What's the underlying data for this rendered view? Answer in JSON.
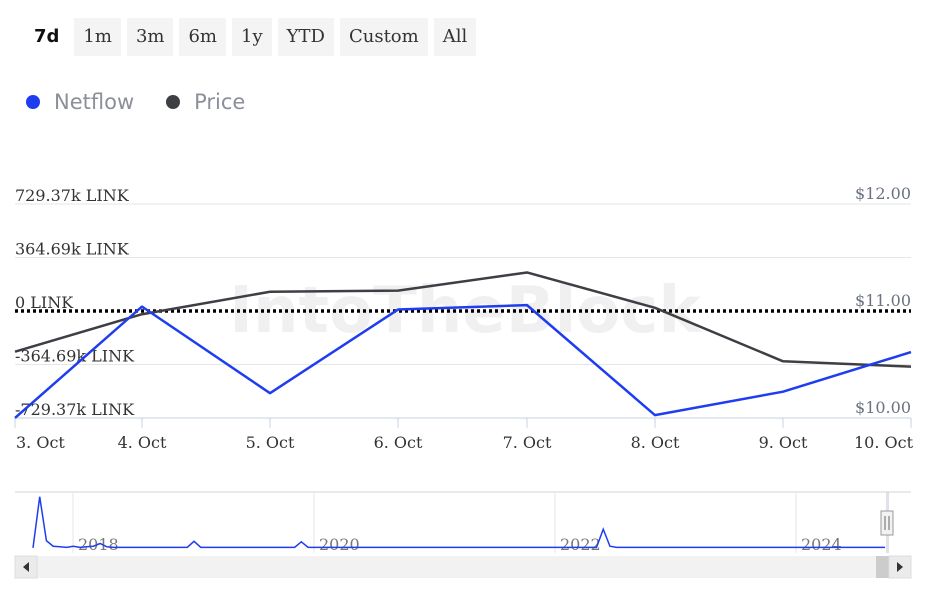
{
  "range_selector": {
    "buttons": [
      {
        "label": "7d",
        "active": true
      },
      {
        "label": "1m",
        "active": false
      },
      {
        "label": "3m",
        "active": false
      },
      {
        "label": "6m",
        "active": false
      },
      {
        "label": "1y",
        "active": false
      },
      {
        "label": "YTD",
        "active": false
      },
      {
        "label": "Custom",
        "active": false
      },
      {
        "label": "All",
        "active": false
      }
    ]
  },
  "watermark": "IntoTheBlock",
  "colors": {
    "netflow": "#1f3df0",
    "price": "#3d3f44",
    "zero_line": "#000000",
    "grid": "#e6e6e6"
  },
  "chart_data": {
    "type": "line",
    "x": [
      "3. Oct",
      "4. Oct",
      "5. Oct",
      "6. Oct",
      "7. Oct",
      "8. Oct",
      "9. Oct",
      "10. Oct"
    ],
    "left_axis": {
      "ticks": [
        -729.37,
        -364.69,
        0,
        364.69,
        729.37
      ],
      "tick_labels": [
        "-729.37k LINK",
        "-364.69k LINK",
        "0 LINK",
        "364.69k LINK",
        "729.37k LINK"
      ],
      "range": [
        -729.37,
        729.37
      ]
    },
    "right_axis": {
      "ticks": [
        10.0,
        11.0,
        12.0
      ],
      "tick_labels": [
        "$10.00",
        "$11.00",
        "$12.00"
      ],
      "range": [
        10.0,
        12.0
      ]
    },
    "series": [
      {
        "name": "Netflow",
        "axis": "left",
        "values": [
          -729,
          30,
          -560,
          10,
          40,
          -710,
          -550,
          -280
        ]
      },
      {
        "name": "Price",
        "axis": "right",
        "values": [
          10.62,
          10.97,
          11.18,
          11.19,
          11.36,
          11.03,
          10.53,
          10.48
        ]
      }
    ],
    "grid": true,
    "legend": "top-left",
    "navigator": {
      "year_labels": [
        "2018",
        "2020",
        "2022",
        "2024"
      ],
      "values": [
        0.02,
        0.95,
        0.15,
        0.05,
        0.04,
        0.03,
        0.05,
        0.03,
        0.04,
        0.05,
        0.1,
        0.04,
        0.03,
        0.03,
        0.03,
        0.03,
        0.03,
        0.03,
        0.03,
        0.03,
        0.03,
        0.03,
        0.03,
        0.03,
        0.14,
        0.03,
        0.03,
        0.03,
        0.03,
        0.03,
        0.03,
        0.03,
        0.03,
        0.03,
        0.03,
        0.03,
        0.03,
        0.03,
        0.03,
        0.03,
        0.13,
        0.03,
        0.03,
        0.03,
        0.03,
        0.03,
        0.03,
        0.03,
        0.03,
        0.03,
        0.03,
        0.03,
        0.03,
        0.03,
        0.03,
        0.03,
        0.03,
        0.03,
        0.03,
        0.03,
        0.03,
        0.03,
        0.03,
        0.03,
        0.03,
        0.03,
        0.03,
        0.03,
        0.03,
        0.03,
        0.03,
        0.03,
        0.03,
        0.03,
        0.03,
        0.03,
        0.03,
        0.03,
        0.03,
        0.03,
        0.03,
        0.03,
        0.03,
        0.03,
        0.03,
        0.36,
        0.05,
        0.03,
        0.03,
        0.03,
        0.03,
        0.03,
        0.03,
        0.03,
        0.03,
        0.03,
        0.03,
        0.03,
        0.03,
        0.03,
        0.03,
        0.03,
        0.03,
        0.03,
        0.03,
        0.03,
        0.03,
        0.03,
        0.03,
        0.03,
        0.03,
        0.03,
        0.03,
        0.03,
        0.03,
        0.03,
        0.03,
        0.03,
        0.03,
        0.03,
        0.03,
        0.03,
        0.03,
        0.03,
        0.03,
        0.03,
        0.03,
        0.03
      ]
    }
  }
}
